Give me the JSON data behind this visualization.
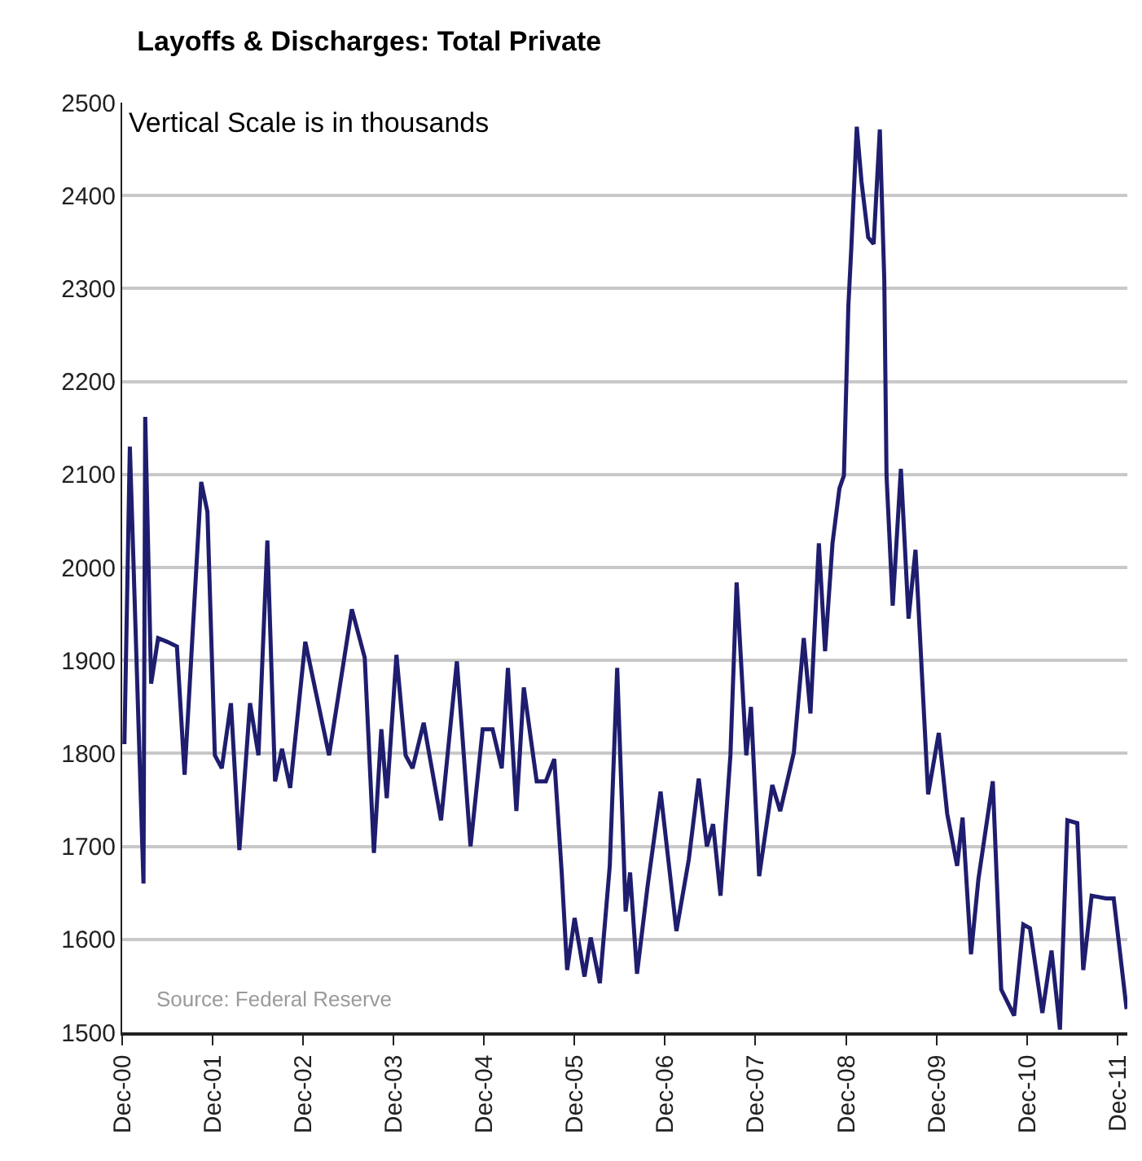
{
  "chart_data": {
    "type": "line",
    "title": "Layoffs & Discharges: Total Private",
    "annotations": [
      "Vertical Scale is in thousands",
      "Source: Federal Reserve"
    ],
    "x": [
      "2000-12-10",
      "2001-01-01",
      "2001-02-25",
      "2001-03-04",
      "2001-03-28",
      "2001-04-25",
      "2001-06-01",
      "2001-07-10",
      "2001-08-10",
      "2001-10-16",
      "2001-11-10",
      "2001-12-10",
      "2002-01-07",
      "2002-02-13",
      "2002-03-19",
      "2002-05-01",
      "2002-06-04",
      "2002-07-10",
      "2002-08-10",
      "2002-09-07",
      "2002-10-10",
      "2002-12-10",
      "2003-03-16",
      "2003-06-16",
      "2003-08-07",
      "2003-09-13",
      "2003-10-13",
      "2003-11-04",
      "2003-12-13",
      "2004-01-19",
      "2004-02-16",
      "2004-04-01",
      "2004-06-10",
      "2004-08-13",
      "2004-10-07",
      "2004-11-25",
      "2005-01-04",
      "2005-02-10",
      "2005-03-07",
      "2005-04-10",
      "2005-05-10",
      "2005-07-01",
      "2005-08-07",
      "2005-09-10",
      "2005-10-10",
      "2005-11-01",
      "2005-12-01",
      "2006-01-10",
      "2006-02-04",
      "2006-03-13",
      "2006-04-22",
      "2006-05-22",
      "2006-06-25",
      "2006-07-13",
      "2006-08-10",
      "2006-09-22",
      "2006-11-13",
      "2007-01-16",
      "2007-03-07",
      "2007-04-16",
      "2007-05-19",
      "2007-06-13",
      "2007-07-13",
      "2007-08-22",
      "2007-09-16",
      "2007-10-25",
      "2007-11-13",
      "2007-12-16",
      "2008-02-07",
      "2008-03-10",
      "2008-05-04",
      "2008-06-13",
      "2008-07-10",
      "2008-08-13",
      "2008-09-07",
      "2008-10-07",
      "2008-11-04",
      "2008-11-22",
      "2008-12-10",
      "2008-12-22",
      "2009-01-13",
      "2009-02-01",
      "2009-02-28",
      "2009-03-22",
      "2009-04-16",
      "2009-05-04",
      "2009-05-13",
      "2009-06-07",
      "2009-07-10",
      "2009-08-10",
      "2009-09-07",
      "2009-10-28",
      "2009-12-10",
      "2010-01-13",
      "2010-02-22",
      "2010-03-16",
      "2010-04-19",
      "2010-05-19",
      "2010-07-16",
      "2010-08-19",
      "2010-10-10",
      "2010-11-16",
      "2010-12-13",
      "2011-02-01",
      "2011-03-10",
      "2011-04-13",
      "2011-05-13",
      "2011-06-22",
      "2011-07-16",
      "2011-08-19",
      "2011-10-16",
      "2011-11-16",
      "2012-01-07"
    ],
    "series": [
      {
        "color": "#1f1d6e",
        "values": [
          1810,
          2130,
          1660,
          2162,
          1875,
          1924,
          1920,
          1915,
          1777,
          2092,
          2060,
          1798,
          1784,
          1854,
          1696,
          1854,
          1798,
          2029,
          1770,
          1805,
          1763,
          1920,
          1798,
          1955,
          1903,
          1693,
          1826,
          1752,
          1906,
          1798,
          1784,
          1833,
          1728,
          1899,
          1700,
          1826,
          1826,
          1784,
          1892,
          1738,
          1871,
          1770,
          1770,
          1794,
          1672,
          1567,
          1623,
          1560,
          1602,
          1553,
          1679,
          1892,
          1630,
          1672,
          1563,
          1658,
          1759,
          1609,
          1686,
          1773,
          1700,
          1724,
          1647,
          1798,
          1984,
          1798,
          1850,
          1668,
          1766,
          1738,
          1801,
          1924,
          1843,
          2026,
          1910,
          2026,
          2085,
          2099,
          2281,
          2344,
          2474,
          2415,
          2355,
          2348,
          2471,
          2309,
          2099,
          1959,
          2106,
          1945,
          2019,
          1756,
          1822,
          1735,
          1679,
          1731,
          1584,
          1665,
          1770,
          1546,
          1518,
          1616,
          1612,
          1521,
          1588,
          1503,
          1728,
          1725,
          1567,
          1647,
          1644,
          1644,
          1525
        ]
      }
    ],
    "xlim": [
      "2000-12-01",
      "2012-01-10"
    ],
    "xticks": [
      {
        "value": "2000-12-01",
        "label": "Dec-00"
      },
      {
        "value": "2001-12-01",
        "label": "Dec-01"
      },
      {
        "value": "2002-12-01",
        "label": "Dec-02"
      },
      {
        "value": "2003-12-01",
        "label": "Dec-03"
      },
      {
        "value": "2004-12-01",
        "label": "Dec-04"
      },
      {
        "value": "2005-12-01",
        "label": "Dec-05"
      },
      {
        "value": "2006-12-01",
        "label": "Dec-06"
      },
      {
        "value": "2007-12-01",
        "label": "Dec-07"
      },
      {
        "value": "2008-12-01",
        "label": "Dec-08"
      },
      {
        "value": "2009-12-01",
        "label": "Dec-09"
      },
      {
        "value": "2010-12-01",
        "label": "Dec-10"
      },
      {
        "value": "2011-12-01",
        "label": "Dec-11"
      }
    ],
    "ylim": [
      1500,
      2500
    ],
    "yticks": [
      1500,
      1600,
      1700,
      1800,
      1900,
      2000,
      2100,
      2200,
      2300,
      2400,
      2500
    ],
    "grid": "y",
    "marker": "none",
    "line_style": "solid"
  }
}
